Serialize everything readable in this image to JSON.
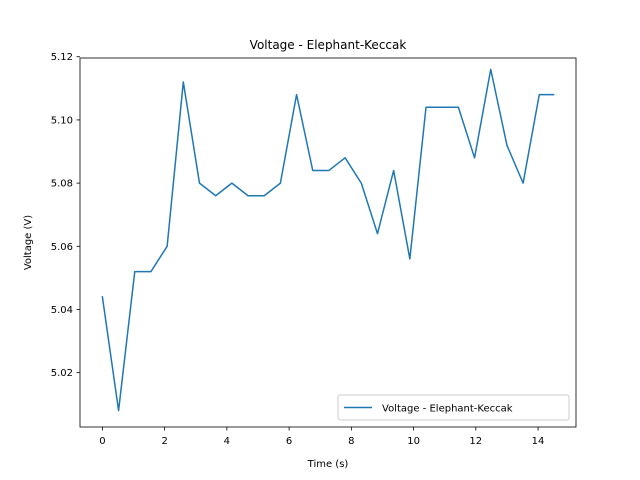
{
  "chart_data": {
    "type": "line",
    "title": "Voltage - Elephant-Keccak",
    "xlabel": "Time (s)",
    "ylabel": "Voltage (V)",
    "xlim": [
      -0.72,
      15.22
    ],
    "ylim": [
      5.0028,
      5.1196
    ],
    "xticks": [
      0,
      2,
      4,
      6,
      8,
      10,
      12,
      14
    ],
    "xtick_labels": [
      "0",
      "2",
      "4",
      "6",
      "8",
      "10",
      "12",
      "14"
    ],
    "yticks": [
      5.02,
      5.04,
      5.06,
      5.08,
      5.1,
      5.12
    ],
    "ytick_labels": [
      "5.02",
      "5.04",
      "5.06",
      "5.08",
      "5.10",
      "5.12"
    ],
    "grid": false,
    "legend": "lower-right",
    "series": [
      {
        "name": "Voltage - Elephant-Keccak",
        "color": "#1f77b4",
        "x": [
          0.0,
          0.52,
          1.04,
          1.56,
          2.08,
          2.6,
          3.12,
          3.64,
          4.16,
          4.68,
          5.2,
          5.72,
          6.24,
          6.76,
          7.28,
          7.8,
          8.32,
          8.84,
          9.36,
          9.88,
          10.4,
          10.92,
          11.44,
          11.96,
          12.48,
          13.0,
          13.52,
          14.04,
          14.5
        ],
        "y": [
          5.044,
          5.008,
          5.052,
          5.052,
          5.06,
          5.112,
          5.08,
          5.076,
          5.08,
          5.076,
          5.076,
          5.08,
          5.108,
          5.084,
          5.084,
          5.088,
          5.08,
          5.064,
          5.084,
          5.056,
          5.104,
          5.104,
          5.104,
          5.088,
          5.116,
          5.092,
          5.08,
          5.108,
          5.108
        ]
      }
    ]
  }
}
